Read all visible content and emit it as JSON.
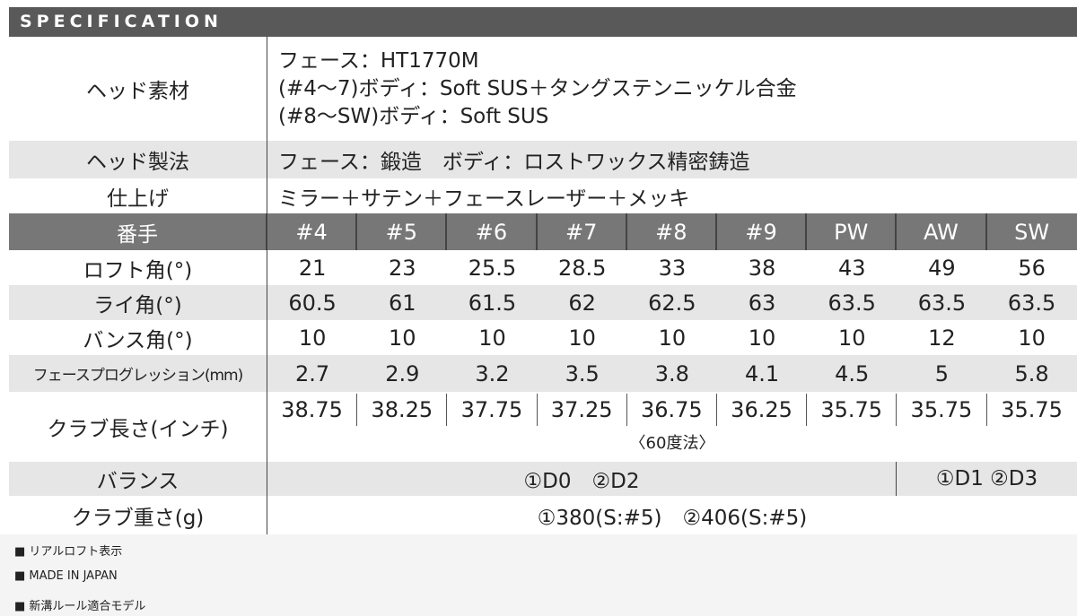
{
  "title": "SPECIFICATION",
  "head_material": {
    "label": "ヘッド素材",
    "lines": [
      "フェース：HT1770M",
      "(#4〜7)ボディ：Soft SUS＋タングステンニッケル合金",
      "(#8〜SW)ボディ：Soft SUS"
    ]
  },
  "head_method": {
    "label": "ヘッド製法",
    "value": "フェース：鍛造　ボディ：ロストワックス精密鋳造"
  },
  "finish": {
    "label": "仕上げ",
    "value": "ミラー＋サテン＋フェースレーザー＋メッキ"
  },
  "number": {
    "label": "番手",
    "values": [
      "#4",
      "#5",
      "#6",
      "#7",
      "#8",
      "#9",
      "PW",
      "AW",
      "SW"
    ]
  },
  "loft": {
    "label": "ロフト角(°)",
    "values": [
      "21",
      "23",
      "25.5",
      "28.5",
      "33",
      "38",
      "43",
      "49",
      "56"
    ]
  },
  "lie": {
    "label": "ライ角(°)",
    "values": [
      "60.5",
      "61",
      "61.5",
      "62",
      "62.5",
      "63",
      "63.5",
      "63.5",
      "63.5"
    ]
  },
  "bounce": {
    "label": "バンス角(°)",
    "values": [
      "10",
      "10",
      "10",
      "10",
      "10",
      "10",
      "10",
      "12",
      "10"
    ]
  },
  "progression": {
    "label": "フェースプログレッション(mm)",
    "values": [
      "2.7",
      "2.9",
      "3.2",
      "3.5",
      "3.8",
      "4.1",
      "4.5",
      "5",
      "5.8"
    ]
  },
  "length": {
    "label": "クラブ長さ(インチ)",
    "values": [
      "38.75",
      "38.25",
      "37.75",
      "37.25",
      "36.75",
      "36.25",
      "35.75",
      "35.75",
      "35.75"
    ],
    "note": "〈60度法〉"
  },
  "balance": {
    "label": "バランス",
    "left": "①D0　②D2",
    "right": "①D1 ②D3"
  },
  "weight": {
    "label": "クラブ重さ(g)",
    "value": "①380(S:#5)　②406(S:#5)"
  },
  "notes": [
    "■ リアルロフト表示",
    "■ MADE IN JAPAN",
    "■ 新溝ルール適合モデル"
  ],
  "colors": {
    "title_bar": "#595959",
    "header_row": "#777777",
    "stripe": "#e6e6e6"
  }
}
